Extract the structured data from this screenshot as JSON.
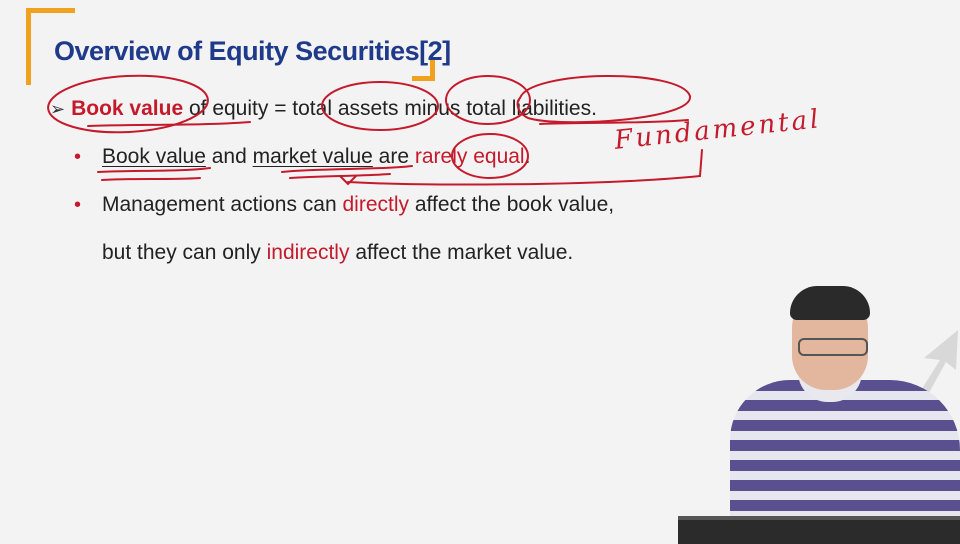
{
  "slide": {
    "title": "Overview of Equity Securities[2]",
    "line1": {
      "term": "Book value",
      "text_a": " of equity = ",
      "total_assets": "total assets",
      "minus": " minus ",
      "total_liabilities": "total liabilities",
      "end": "."
    },
    "bullet1": {
      "book_value": "Book value",
      "and": " and ",
      "market_value": "market value",
      "are": " are ",
      "rarely_equal": "rarely equal",
      "end": "."
    },
    "bullet2": {
      "text_a": "Management actions can ",
      "directly": "directly",
      "text_b": " affect the book value,"
    },
    "bullet2_cont": {
      "text_a": "but they can only ",
      "indirectly": "indirectly",
      "text_b": " affect the market value."
    },
    "annotation": "Fundamental"
  },
  "colors": {
    "title": "#1f3a8a",
    "accent_red": "#c41a2b",
    "bracket": "#f0a21e"
  }
}
